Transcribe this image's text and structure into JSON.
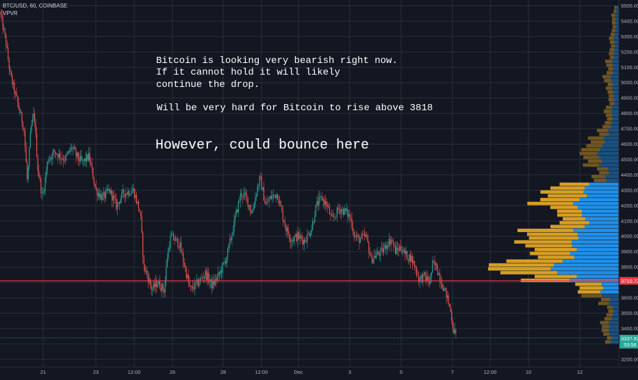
{
  "header": {
    "symbol_line": "BTC/USD, 60, COINBASE",
    "indicator": "VPVR"
  },
  "annotations": {
    "line1": "Bitcoin is looking very bearish right now.",
    "line2": "If it cannot hold it will likely",
    "line3": "continue the drop.",
    "line4": "Will be very hard for Bitcoin to rise above 3818",
    "line5": "However, could bounce here"
  },
  "price_tags": {
    "red_level": "3710.72",
    "last_price": "3337.82",
    "countdown": "53:56"
  },
  "colors": {
    "background": "#131722",
    "grid": "#2a2e39",
    "up": "#26a69a",
    "down": "#ef5350",
    "red_line": "#f23645",
    "vp_up": "#e0a526",
    "vp_down": "#2196f3",
    "last_line": "#26a69a"
  },
  "chart_data": {
    "type": "candlestick",
    "title": "BTC/USD, 60, COINBASE",
    "ylim": [
      3150,
      5520
    ],
    "y_ticks": [
      3200,
      3300,
      3400,
      3500,
      3600,
      3700,
      3800,
      3900,
      4000,
      4100,
      4200,
      4300,
      4400,
      4500,
      4600,
      4700,
      4800,
      4900,
      5000,
      5100,
      5200,
      5300,
      5400,
      5500
    ],
    "x_ticks": [
      "21",
      "23",
      "12:00",
      "26",
      "28",
      "12:00",
      "Dec",
      "3",
      "5",
      "7",
      "12:00",
      "10",
      "12"
    ],
    "price_path": [
      [
        0,
        5460
      ],
      [
        8,
        5280
      ],
      [
        15,
        5050
      ],
      [
        25,
        4880
      ],
      [
        35,
        4700
      ],
      [
        40,
        4350
      ],
      [
        45,
        4700
      ],
      [
        50,
        4800
      ],
      [
        55,
        4450
      ],
      [
        62,
        4250
      ],
      [
        70,
        4500
      ],
      [
        80,
        4550
      ],
      [
        95,
        4500
      ],
      [
        105,
        4580
      ],
      [
        112,
        4520
      ],
      [
        120,
        4480
      ],
      [
        130,
        4520
      ],
      [
        140,
        4300
      ],
      [
        150,
        4250
      ],
      [
        160,
        4300
      ],
      [
        170,
        4200
      ],
      [
        180,
        4280
      ],
      [
        195,
        4300
      ],
      [
        205,
        4150
      ],
      [
        210,
        3800
      ],
      [
        215,
        3750
      ],
      [
        222,
        3650
      ],
      [
        230,
        3700
      ],
      [
        240,
        3650
      ],
      [
        245,
        3900
      ],
      [
        250,
        4000
      ],
      [
        262,
        3950
      ],
      [
        270,
        3800
      ],
      [
        278,
        3650
      ],
      [
        290,
        3700
      ],
      [
        300,
        3760
      ],
      [
        310,
        3680
      ],
      [
        320,
        3750
      ],
      [
        330,
        3850
      ],
      [
        338,
        4000
      ],
      [
        345,
        4150
      ],
      [
        352,
        4280
      ],
      [
        360,
        4250
      ],
      [
        368,
        4150
      ],
      [
        375,
        4300
      ],
      [
        380,
        4380
      ],
      [
        388,
        4200
      ],
      [
        395,
        4250
      ],
      [
        405,
        4280
      ],
      [
        412,
        4150
      ],
      [
        418,
        4050
      ],
      [
        425,
        3980
      ],
      [
        435,
        4000
      ],
      [
        445,
        3970
      ],
      [
        455,
        4050
      ],
      [
        462,
        4200
      ],
      [
        470,
        4250
      ],
      [
        478,
        4200
      ],
      [
        485,
        4100
      ],
      [
        495,
        4180
      ],
      [
        505,
        4160
      ],
      [
        512,
        4120
      ],
      [
        518,
        4000
      ],
      [
        525,
        3980
      ],
      [
        535,
        4000
      ],
      [
        542,
        3850
      ],
      [
        550,
        3880
      ],
      [
        558,
        3900
      ],
      [
        565,
        3950
      ],
      [
        572,
        3980
      ],
      [
        578,
        3900
      ],
      [
        585,
        3930
      ],
      [
        592,
        3880
      ],
      [
        600,
        3860
      ],
      [
        605,
        3820
      ],
      [
        612,
        3720
      ],
      [
        620,
        3740
      ],
      [
        628,
        3700
      ],
      [
        632,
        3820
      ],
      [
        638,
        3800
      ],
      [
        645,
        3700
      ],
      [
        652,
        3620
      ],
      [
        658,
        3520
      ],
      [
        662,
        3400
      ],
      [
        667,
        3340
      ]
    ],
    "horizontal_levels": [
      {
        "price": 3710.72,
        "label": "3710.72"
      },
      {
        "price": 3337.82,
        "label": "3337.82"
      }
    ],
    "volume_profile": {
      "levels": [
        3300,
        3350,
        3400,
        3450,
        3500,
        3550,
        3600,
        3650,
        3700,
        3750,
        3800,
        3850,
        3900,
        3950,
        4000,
        4050,
        4100,
        4150,
        4200,
        4250,
        4300,
        4350,
        4400,
        4450,
        4500,
        4550,
        4600,
        4650,
        4700,
        4750,
        4800,
        4850,
        4900,
        4950,
        5000,
        5050,
        5100,
        5150,
        5200,
        5250,
        5300,
        5350,
        5400,
        5450
      ],
      "total": [
        20,
        25,
        30,
        22,
        18,
        30,
        60,
        70,
        150,
        200,
        190,
        130,
        150,
        160,
        155,
        100,
        90,
        110,
        140,
        120,
        100,
        40,
        35,
        55,
        60,
        55,
        45,
        35,
        25,
        20,
        22,
        15,
        18,
        20,
        25,
        18,
        20,
        16,
        14,
        15,
        12,
        10,
        12,
        8
      ],
      "up_fraction": [
        0.4,
        0.4,
        0.45,
        0.5,
        0.5,
        0.5,
        0.55,
        0.6,
        0.5,
        0.48,
        0.5,
        0.45,
        0.5,
        0.55,
        0.55,
        0.5,
        0.4,
        0.4,
        0.5,
        0.55,
        0.5,
        0.5,
        0.5,
        0.45,
        0.45,
        0.5,
        0.5,
        0.5,
        0.5,
        0.5,
        0.5,
        0.5,
        0.5,
        0.5,
        0.5,
        0.5,
        0.5,
        0.5,
        0.5,
        0.5,
        0.5,
        0.5,
        0.5,
        0.5
      ]
    }
  }
}
